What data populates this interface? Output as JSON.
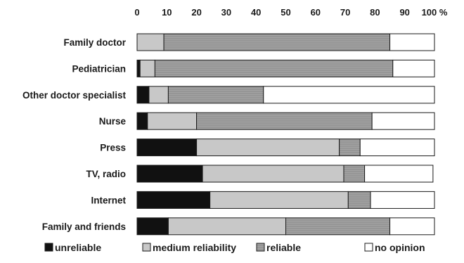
{
  "chart_data": {
    "type": "bar",
    "orientation": "horizontal",
    "stacked": true,
    "title": "",
    "xlabel": "",
    "ylabel": "",
    "xlim": [
      0,
      100
    ],
    "x_ticks": [
      0,
      10,
      20,
      30,
      40,
      50,
      60,
      70,
      80,
      90,
      100
    ],
    "x_tick_labels": [
      "0",
      "10",
      "20",
      "30",
      "40",
      "50",
      "60",
      "70",
      "80",
      "90",
      "100 %"
    ],
    "grid": false,
    "legend_position": "bottom",
    "categories": [
      "Family doctor",
      "Pediatrician",
      "Other doctor specialist",
      "Nurse",
      "Press",
      "TV, radio",
      "Internet",
      "Family and friends"
    ],
    "series": [
      {
        "name": "unreliable",
        "color": "#111111",
        "pattern": "solid",
        "values": [
          0,
          1,
          4,
          3.5,
          20,
          22,
          24.5,
          10.5
        ]
      },
      {
        "name": "medium reliability",
        "color": "#c8c8c8",
        "pattern": "solid",
        "values": [
          9,
          5,
          6.5,
          16.5,
          48,
          47.5,
          46.5,
          39.5
        ]
      },
      {
        "name": "reliable",
        "color": "#9e9e9e",
        "pattern": "hatched",
        "values": [
          76,
          80,
          32,
          59,
          7,
          7,
          7.5,
          35
        ]
      },
      {
        "name": "no opinion",
        "color": "#ffffff",
        "pattern": "solid",
        "values": [
          15,
          14,
          57.5,
          21,
          25,
          23,
          21.5,
          15
        ]
      }
    ]
  }
}
